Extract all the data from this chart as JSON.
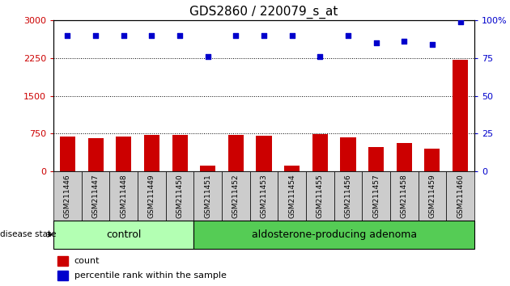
{
  "title": "GDS2860 / 220079_s_at",
  "samples": [
    "GSM211446",
    "GSM211447",
    "GSM211448",
    "GSM211449",
    "GSM211450",
    "GSM211451",
    "GSM211452",
    "GSM211453",
    "GSM211454",
    "GSM211455",
    "GSM211456",
    "GSM211457",
    "GSM211458",
    "GSM211459",
    "GSM211460"
  ],
  "counts": [
    700,
    660,
    700,
    720,
    730,
    120,
    720,
    710,
    120,
    740,
    680,
    490,
    570,
    460,
    2220
  ],
  "percentile_ranks": [
    90,
    90,
    90,
    90,
    90,
    76,
    90,
    90,
    90,
    76,
    90,
    85,
    86,
    84,
    99
  ],
  "groups": {
    "control": [
      0,
      1,
      2,
      3,
      4
    ],
    "adenoma": [
      5,
      6,
      7,
      8,
      9,
      10,
      11,
      12,
      13,
      14
    ]
  },
  "bar_color": "#cc0000",
  "dot_color": "#0000cc",
  "ylim_left": [
    0,
    3000
  ],
  "ylim_right": [
    0,
    100
  ],
  "yticks_left": [
    0,
    750,
    1500,
    2250,
    3000
  ],
  "yticks_right": [
    0,
    25,
    50,
    75,
    100
  ],
  "control_color": "#b3ffb3",
  "adenoma_color": "#55cc55",
  "label_bg_color": "#cccccc",
  "control_label": "control",
  "adenoma_label": "aldosterone-producing adenoma",
  "disease_state_label": "disease state",
  "legend_count": "count",
  "legend_percentile": "percentile rank within the sample",
  "axis_color_left": "#cc0000",
  "axis_color_right": "#0000cc",
  "grid_color": "#000000",
  "title_fontsize": 11,
  "tick_fontsize": 8,
  "label_fontsize": 9
}
